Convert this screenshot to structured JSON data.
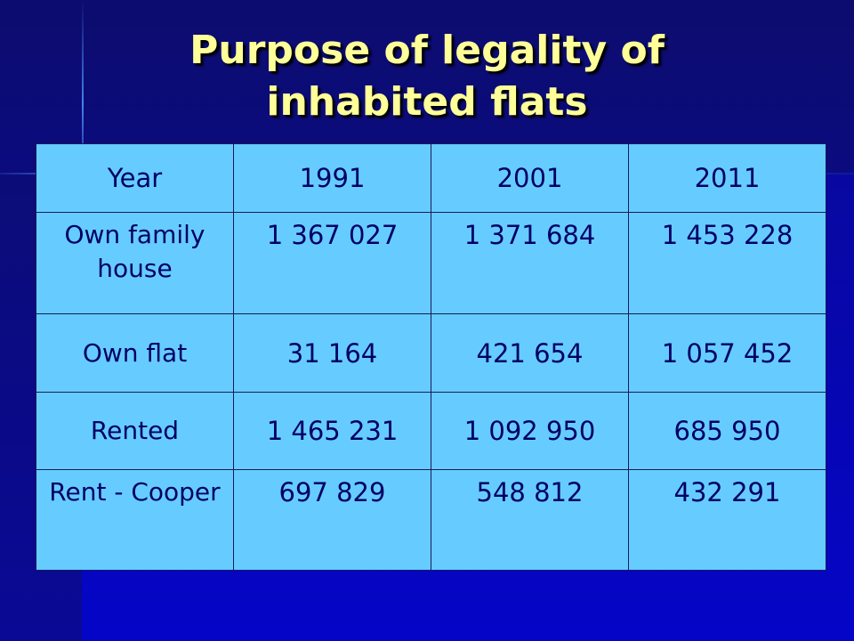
{
  "slide": {
    "title_line1": "Purpose of legality of",
    "title_line2": "inhabited flats"
  },
  "table": {
    "header": [
      "Year",
      "1991",
      "2001",
      "2011"
    ],
    "rows": [
      {
        "label": "Own family house",
        "values": [
          "1 367 027",
          "1 371 684",
          "1 453 228"
        ]
      },
      {
        "label": "Own flat",
        "values": [
          "31 164",
          "421 654",
          "1 057 452"
        ]
      },
      {
        "label": "Rented",
        "values": [
          "1 465 231",
          "1 092 950",
          "685 950"
        ]
      },
      {
        "label": "Rent - Cooper",
        "values": [
          "697 829",
          "548 812",
          "432 291"
        ]
      }
    ]
  },
  "colors": {
    "background": "#0a0a8a",
    "title": "#ffff99",
    "table_fill": "#66ccff",
    "table_text": "#000066"
  }
}
